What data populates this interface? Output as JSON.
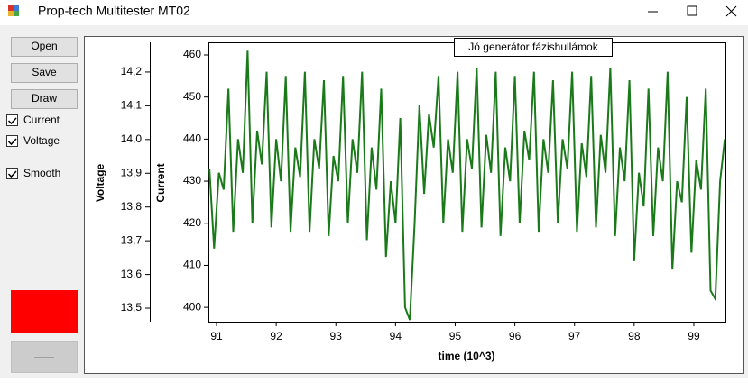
{
  "window": {
    "title": "Prop-tech Multitester MT02"
  },
  "buttons": [
    "Open",
    "Save",
    "Draw"
  ],
  "checkboxes": [
    {
      "label": "Current",
      "checked": true
    },
    {
      "label": "Voltage",
      "checked": true
    },
    {
      "label": "Smooth",
      "checked": true
    }
  ],
  "chart_data": {
    "type": "line",
    "title": "Jó generátor fázishullámok",
    "xlabel": "time (10^3)",
    "ylabel": "Current",
    "y2label": "Voltage",
    "color": "#1a7a1a",
    "x": [
      90.88,
      90.96,
      91.04,
      91.12,
      91.2,
      91.28,
      91.36,
      91.44,
      91.52,
      91.6,
      91.68,
      91.76,
      91.84,
      91.92,
      92,
      92.08,
      92.16,
      92.24,
      92.32,
      92.4,
      92.48,
      92.56,
      92.64,
      92.72,
      92.8,
      92.88,
      92.96,
      93.04,
      93.12,
      93.2,
      93.28,
      93.36,
      93.44,
      93.52,
      93.6,
      93.68,
      93.76,
      93.84,
      93.92,
      94,
      94.08,
      94.16,
      94.24,
      94.32,
      94.4,
      94.48,
      94.56,
      94.64,
      94.72,
      94.8,
      94.88,
      94.96,
      95.04,
      95.12,
      95.2,
      95.28,
      95.36,
      95.44,
      95.52,
      95.6,
      95.68,
      95.76,
      95.84,
      95.92,
      96,
      96.08,
      96.16,
      96.24,
      96.32,
      96.4,
      96.48,
      96.56,
      96.64,
      96.72,
      96.8,
      96.88,
      96.96,
      97.04,
      97.12,
      97.2,
      97.28,
      97.36,
      97.44,
      97.52,
      97.6,
      97.68,
      97.76,
      97.84,
      97.92,
      98,
      98.08,
      98.16,
      98.24,
      98.32,
      98.4,
      98.48,
      98.56,
      98.64,
      98.72,
      98.8,
      98.88,
      98.96,
      99.04,
      99.12,
      99.2,
      99.28,
      99.36,
      99.44,
      99.52
    ],
    "values": [
      433,
      414,
      432,
      428,
      452,
      418,
      440,
      432,
      461,
      420,
      442,
      434,
      456,
      419,
      440,
      430,
      455,
      418,
      438,
      431,
      456,
      418,
      440,
      433,
      454,
      417,
      436,
      430,
      455,
      420,
      440,
      432,
      456,
      416,
      438,
      428,
      452,
      412,
      430,
      420,
      445,
      400,
      397,
      420,
      448,
      427,
      446,
      438,
      455,
      420,
      440,
      432,
      456,
      418,
      440,
      433,
      457,
      419,
      441,
      432,
      456,
      417,
      438,
      430,
      455,
      420,
      442,
      435,
      456,
      418,
      440,
      432,
      454,
      420,
      440,
      433,
      456,
      418,
      439,
      431,
      455,
      419,
      441,
      432,
      457,
      417,
      438,
      430,
      454,
      411,
      432,
      424,
      452,
      417,
      438,
      430,
      456,
      409,
      430,
      425,
      450,
      413,
      435,
      428,
      452,
      404,
      402,
      430,
      440
    ],
    "xlim": [
      90.864,
      99.545
    ],
    "xticks": [
      91,
      92,
      93,
      94,
      95,
      96,
      97,
      98,
      99
    ],
    "ylim": [
      396.6,
      463.0
    ],
    "yticks": [
      400,
      410,
      420,
      430,
      440,
      450,
      460
    ],
    "y2lim": [
      13.46,
      14.288
    ],
    "y2ticks": [
      {
        "value": 13.5,
        "label": "13,5"
      },
      {
        "value": 13.6,
        "label": "13,6"
      },
      {
        "value": 13.7,
        "label": "13,7"
      },
      {
        "value": 13.8,
        "label": "13,8"
      },
      {
        "value": 13.9,
        "label": "13,9"
      },
      {
        "value": 14.0,
        "label": "14,0"
      },
      {
        "value": 14.1,
        "label": "14,1"
      },
      {
        "value": 14.2,
        "label": "14,2"
      }
    ]
  }
}
